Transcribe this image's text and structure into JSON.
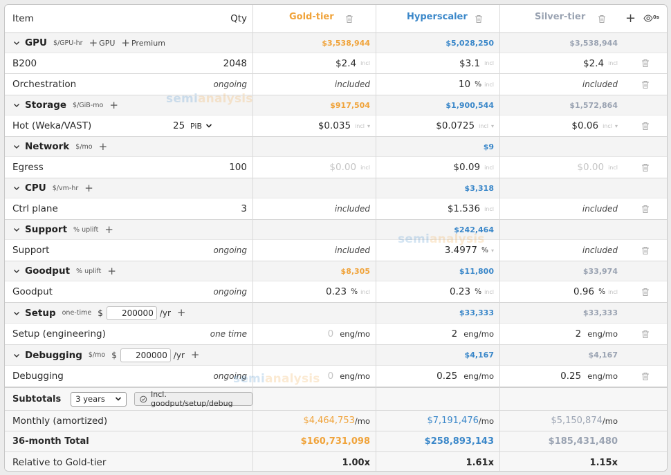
{
  "header": {
    "item": "Item",
    "qty": "Qty",
    "providers": [
      "Gold-tier",
      "Hyperscaler",
      "Silver-tier"
    ],
    "eye_label": "0s"
  },
  "colors": {
    "gold": "#f0a33a",
    "hyperscaler": "#3a87c9",
    "silver": "#9aa3b2"
  },
  "watermark": {
    "part1": "semi",
    "part2": "analysis"
  },
  "sections": {
    "gpu": {
      "name": "GPU",
      "unit": "$/GPU-hr",
      "tag1": "GPU",
      "tag2": "Premium",
      "gold": "$3,538,944",
      "hyp": "$5,028,250",
      "silver": "$3,538,944"
    },
    "storage": {
      "name": "Storage",
      "unit": "$/GiB-mo",
      "gold": "$917,504",
      "hyp": "$1,900,544",
      "silver": "$1,572,864"
    },
    "network": {
      "name": "Network",
      "unit": "$/mo",
      "hyp": "$9"
    },
    "cpu": {
      "name": "CPU",
      "unit": "$/vm-hr",
      "hyp": "$3,318"
    },
    "support": {
      "name": "Support",
      "unit": "% uplift",
      "hyp": "$242,464"
    },
    "goodput": {
      "name": "Goodput",
      "unit": "% uplift",
      "gold": "$8,305",
      "hyp": "$11,800",
      "silver": "$33,974"
    },
    "setup": {
      "name": "Setup",
      "unit": "one-time",
      "currency": "$",
      "amount": "200000",
      "per": "/yr",
      "hyp": "$33,333",
      "silver": "$33,333"
    },
    "debugging": {
      "name": "Debugging",
      "unit": "$/mo",
      "currency": "$",
      "amount": "200000",
      "per": "/yr",
      "hyp": "$4,167",
      "silver": "$4,167"
    }
  },
  "rows": {
    "b200": {
      "item": "B200",
      "qty": "2048",
      "gold": "$2.4",
      "hyp": "$3.1",
      "silver": "$2.4",
      "incl": "incl"
    },
    "orchestration": {
      "item": "Orchestration",
      "qty": "ongoing",
      "gold": "included",
      "hyp": "10",
      "hyp_pct": "%",
      "silver": "included",
      "incl": "incl"
    },
    "hot": {
      "item": "Hot (Weka/VAST)",
      "qty": "25",
      "qty_unit": "PiB",
      "gold": "$0.035",
      "hyp": "$0.0725",
      "silver": "$0.06",
      "incl": "incl"
    },
    "egress": {
      "item": "Egress",
      "qty": "100",
      "gold": "$0.00",
      "hyp": "$0.09",
      "silver": "$0.00",
      "incl": "incl"
    },
    "ctrl": {
      "item": "Ctrl plane",
      "qty": "3",
      "gold": "included",
      "hyp": "$1.536",
      "silver": "included",
      "incl": "incl"
    },
    "support": {
      "item": "Support",
      "qty": "ongoing",
      "gold": "included",
      "hyp": "3.4977",
      "hyp_pct": "%",
      "silver": "included"
    },
    "goodput": {
      "item": "Goodput",
      "qty": "ongoing",
      "gold": "0.23",
      "hyp": "0.23",
      "silver": "0.96",
      "pct": "%",
      "incl": "incl"
    },
    "setup": {
      "item": "Setup (engineering)",
      "qty": "one time",
      "gold": "0",
      "hyp": "2",
      "silver": "2",
      "unit": "eng/mo"
    },
    "debugging": {
      "item": "Debugging",
      "qty": "ongoing",
      "gold": "0",
      "hyp": "0.25",
      "silver": "0.25",
      "unit": "eng/mo"
    }
  },
  "subtotals": {
    "label": "Subtotals",
    "period": "3 years",
    "toggle": "Incl. goodput/setup/debug",
    "monthly": {
      "label": "Monthly (amortized)",
      "gold": "$4,464,753",
      "hyp": "$7,191,476",
      "silver": "$5,150,874",
      "per": "/mo"
    },
    "total": {
      "label": "36-month Total",
      "gold": "$160,731,098",
      "hyp": "$258,893,143",
      "silver": "$185,431,480"
    },
    "relative": {
      "label": "Relative to Gold-tier",
      "gold": "1.00x",
      "hyp": "1.61x",
      "silver": "1.15x"
    }
  }
}
